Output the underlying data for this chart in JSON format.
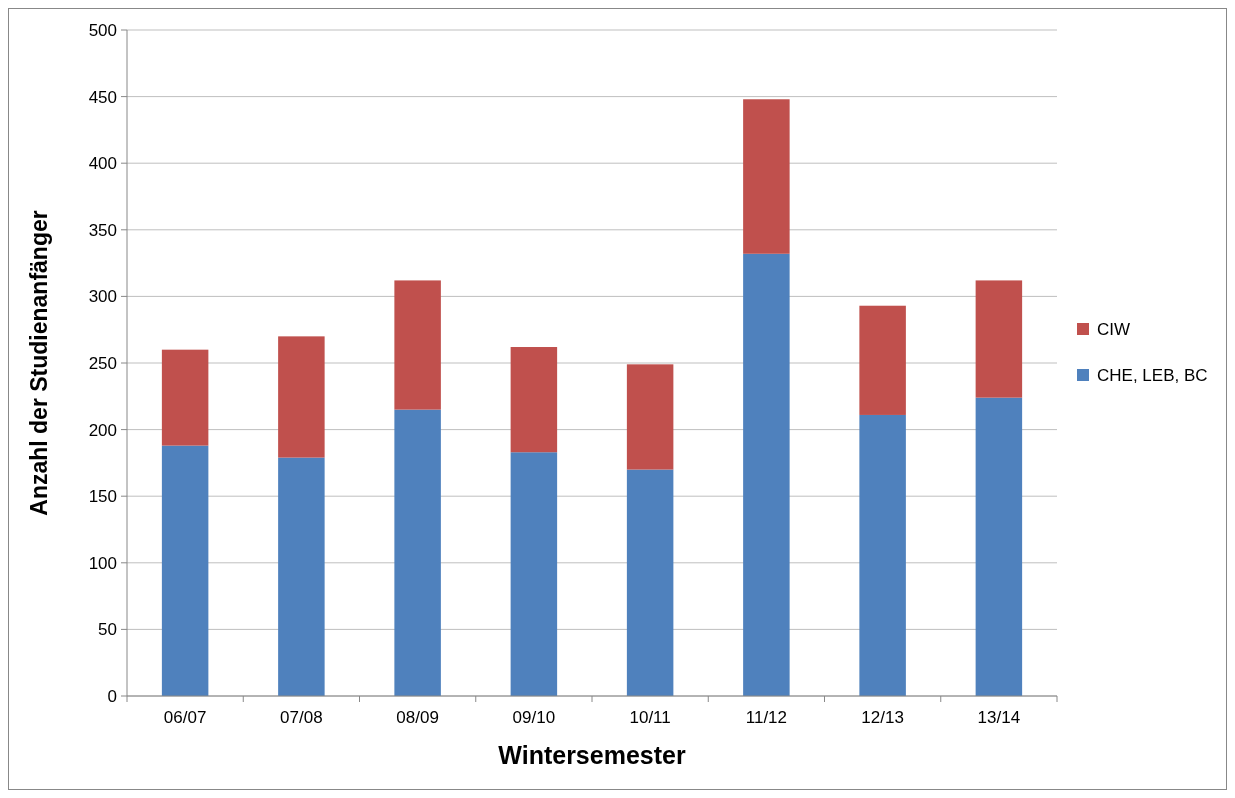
{
  "chart_data": {
    "type": "bar",
    "xlabel": "Wintersemester",
    "ylabel": "Anzahl der Studienanfänger",
    "categories": [
      "06/07",
      "07/08",
      "08/09",
      "09/10",
      "10/11",
      "11/12",
      "12/13",
      "13/14"
    ],
    "series": [
      {
        "name": "CHE, LEB, BC",
        "color": "#4f81bd",
        "values": [
          188,
          179,
          215,
          183,
          170,
          332,
          211,
          224
        ]
      },
      {
        "name": "CIW",
        "color": "#c0504d",
        "values": [
          72,
          91,
          97,
          79,
          79,
          116,
          82,
          88
        ]
      }
    ],
    "stacked": true,
    "ylim": [
      0,
      500
    ],
    "yticks": [
      0,
      50,
      100,
      150,
      200,
      250,
      300,
      350,
      400,
      450,
      500
    ],
    "grid": "y",
    "legend": "right"
  }
}
